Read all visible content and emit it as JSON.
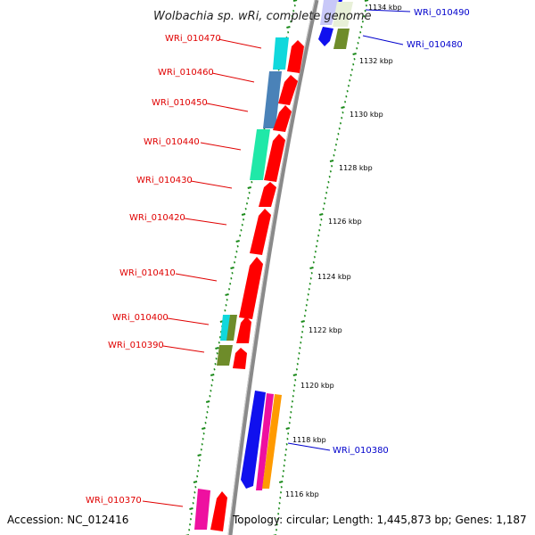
{
  "title": "Wolbachia sp. wRi, complete genome",
  "footer": {
    "accession": "Accession: NC_012416",
    "topology": "Topology: circular; Length: 1,445,873 bp; Genes: 1,187"
  },
  "colors": {
    "backbone": "#8a8a8a",
    "tick": "#1a8a1a",
    "label_left": "#e00000",
    "label_right": "#0000cc",
    "red": "#ff0000",
    "cyan": "#10d8dc",
    "steelblue": "#4a82b8",
    "springgreen": "#20e8a8",
    "olive": "#6e8c2a",
    "blue": "#1010ee",
    "magenta": "#ee10a0",
    "orange": "#ff9a00",
    "lavender": "#c8c8f8"
  },
  "kbp_labels": [
    "1134 kbp",
    "1132 kbp",
    "1130 kbp",
    "1128 kbp",
    "1126 kbp",
    "1124 kbp",
    "1122 kbp",
    "1120 kbp",
    "1118 kbp",
    "1116 kbp"
  ],
  "gene_labels_left": [
    "WRi_010470",
    "WRi_010460",
    "WRi_010450",
    "WRi_010440",
    "WRi_010430",
    "WRi_010420",
    "WRi_010410",
    "WRi_010400",
    "WRi_010390",
    "WRi_010370"
  ],
  "gene_labels_right": [
    "WRi_010490",
    "WRi_010480",
    "WRi_010380"
  ]
}
